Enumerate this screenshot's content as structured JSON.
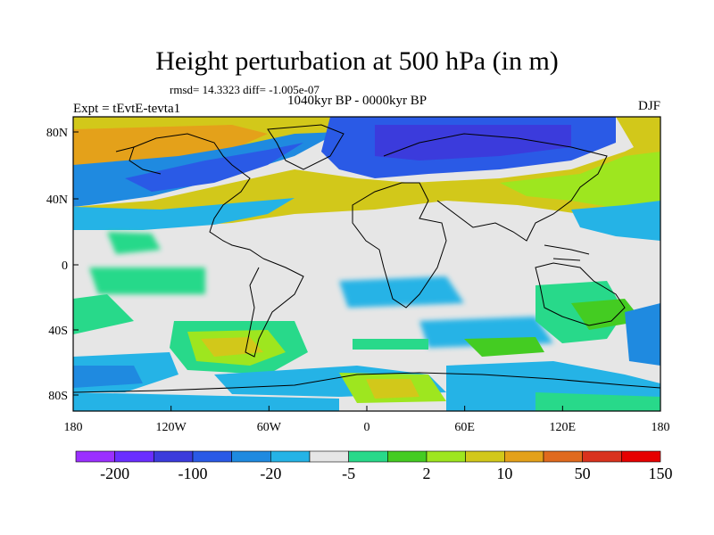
{
  "title": "Height perturbation at 500 hPa (in m)",
  "stats": "rmsd= 14.3323 diff= -1.005e-07",
  "period": "1040kyr BP - 0000kyr BP",
  "experiment": "Expt = tEvtE-tevta1",
  "season": "DJF",
  "lat_labels": [
    "80N",
    "40N",
    "0",
    "40S",
    "80S"
  ],
  "lon_labels": [
    "180",
    "120W",
    "60W",
    "0",
    "60E",
    "120E",
    "180"
  ],
  "colorbar": {
    "colors": [
      "#9b30ff",
      "#6a2eff",
      "#3b3bdc",
      "#2a5ae6",
      "#1f8ae0",
      "#25b3e6",
      "#e6e6e6",
      "#28d98a",
      "#44cc22",
      "#9ee61f",
      "#d2c81a",
      "#e4a11a",
      "#e06a1e",
      "#d9321e",
      "#e60000"
    ],
    "labels": [
      "-200",
      "-100",
      "-20",
      "-5",
      "2",
      "10",
      "50",
      "150"
    ]
  },
  "palette": {
    "land_line": "#000000",
    "neutral": "#e6e6e6"
  }
}
